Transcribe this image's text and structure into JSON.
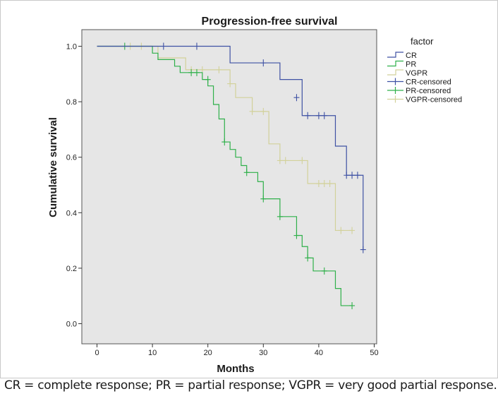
{
  "caption": "CR = complete response; PR = partial response; VGPR = very good partial response.",
  "chart_data": {
    "type": "line",
    "subtype": "kaplan-meier step",
    "title": "Progression-free survival",
    "xlabel": "Months",
    "ylabel": "Cumulative survival",
    "xlim": [
      0,
      50
    ],
    "ylim": [
      0,
      1.0
    ],
    "x_ticks": [
      "0",
      "10",
      "20",
      "30",
      "40",
      "50"
    ],
    "y_ticks": [
      "0.0",
      "0.2",
      "0.4",
      "0.6",
      "0.8",
      "1.0"
    ],
    "grid": false,
    "legend_title": "factor",
    "legend_position": "top-right outside",
    "background": "#e6e6e6",
    "series": [
      {
        "name": "CR",
        "color": "#3f52a4",
        "steps": [
          [
            0,
            1.0
          ],
          [
            24,
            0.94
          ],
          [
            33,
            0.88
          ],
          [
            37,
            0.815
          ],
          [
            37,
            0.75
          ],
          [
            43,
            0.64
          ],
          [
            45,
            0.535
          ],
          [
            48,
            0.267
          ]
        ],
        "end_x": 48,
        "censored": [
          [
            12,
            1.0
          ],
          [
            18,
            1.0
          ],
          [
            30,
            0.94
          ],
          [
            36,
            0.815
          ],
          [
            38,
            0.75
          ],
          [
            40,
            0.75
          ],
          [
            41,
            0.75
          ],
          [
            45,
            0.535
          ],
          [
            46,
            0.535
          ],
          [
            47,
            0.535
          ],
          [
            48,
            0.267
          ]
        ]
      },
      {
        "name": "PR",
        "color": "#2fb04a",
        "steps": [
          [
            0,
            1.0
          ],
          [
            10,
            0.975
          ],
          [
            11,
            0.952
          ],
          [
            14,
            0.928
          ],
          [
            15,
            0.905
          ],
          [
            19,
            0.88
          ],
          [
            20,
            0.857
          ],
          [
            21,
            0.79
          ],
          [
            22,
            0.738
          ],
          [
            23,
            0.655
          ],
          [
            24,
            0.628
          ],
          [
            25,
            0.6
          ],
          [
            26,
            0.57
          ],
          [
            27,
            0.545
          ],
          [
            29,
            0.512
          ],
          [
            30,
            0.45
          ],
          [
            33,
            0.386
          ],
          [
            36,
            0.318
          ],
          [
            37,
            0.278
          ],
          [
            38,
            0.237
          ],
          [
            39,
            0.19
          ],
          [
            43,
            0.127
          ],
          [
            44,
            0.065
          ]
        ],
        "end_x": 46,
        "censored": [
          [
            5,
            1.0
          ],
          [
            17,
            0.905
          ],
          [
            18,
            0.905
          ],
          [
            20,
            0.88
          ],
          [
            23,
            0.655
          ],
          [
            27,
            0.545
          ],
          [
            30,
            0.45
          ],
          [
            33,
            0.386
          ],
          [
            36,
            0.318
          ],
          [
            38,
            0.237
          ],
          [
            41,
            0.19
          ],
          [
            46,
            0.065
          ]
        ]
      },
      {
        "name": "VGPR",
        "color": "#d2d19a",
        "steps": [
          [
            0,
            1.0
          ],
          [
            11,
            0.958
          ],
          [
            16,
            0.915
          ],
          [
            24,
            0.865
          ],
          [
            25,
            0.815
          ],
          [
            28,
            0.765
          ],
          [
            31,
            0.648
          ],
          [
            33,
            0.588
          ],
          [
            38,
            0.505
          ],
          [
            43,
            0.336
          ]
        ],
        "end_x": 46,
        "censored": [
          [
            6,
            1.0
          ],
          [
            8,
            1.0
          ],
          [
            17,
            0.915
          ],
          [
            19,
            0.915
          ],
          [
            22,
            0.915
          ],
          [
            24,
            0.865
          ],
          [
            28,
            0.765
          ],
          [
            30,
            0.765
          ],
          [
            33,
            0.588
          ],
          [
            34,
            0.588
          ],
          [
            37,
            0.588
          ],
          [
            40,
            0.505
          ],
          [
            41,
            0.505
          ],
          [
            42,
            0.505
          ],
          [
            44,
            0.336
          ],
          [
            46,
            0.336
          ]
        ]
      }
    ],
    "legend": [
      {
        "label": "CR",
        "kind": "line",
        "color": "#3f52a4"
      },
      {
        "label": "PR",
        "kind": "line",
        "color": "#2fb04a"
      },
      {
        "label": "VGPR",
        "kind": "line",
        "color": "#d2d19a"
      },
      {
        "label": "CR-censored",
        "kind": "censor",
        "color": "#3f52a4"
      },
      {
        "label": "PR-censored",
        "kind": "censor",
        "color": "#2fb04a"
      },
      {
        "label": "VGPR-censored",
        "kind": "censor",
        "color": "#d2d19a"
      }
    ]
  }
}
